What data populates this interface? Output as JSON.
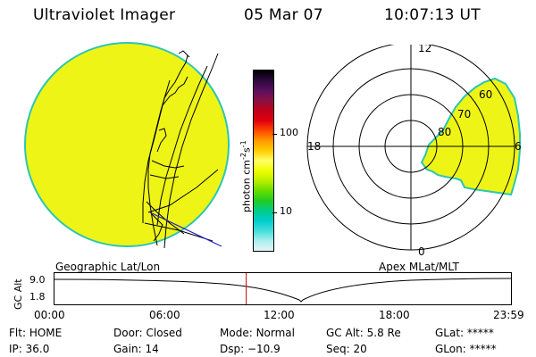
{
  "header": {
    "title": "Ultraviolet Imager",
    "date": "05 Mar 07",
    "time": "10:07:13 UT"
  },
  "colorbar": {
    "label": "photon cm",
    "sup1": "-2",
    "mid": "s",
    "sup2": "-1",
    "tick_high": "100",
    "tick_low": "10",
    "colors": [
      "#000000",
      "#2b0a3d",
      "#5a0f5f",
      "#8a1040",
      "#c00018",
      "#e00010",
      "#ff4800",
      "#ff9900",
      "#ffcc00",
      "#ffff66",
      "#eeff00",
      "#bbee00",
      "#66dd00",
      "#22cc22",
      "#00cc88",
      "#00cccc",
      "#44dddd",
      "#aaeeee",
      "#e8f4f4"
    ]
  },
  "left_panel": {
    "label": "Geographic Lat/Lon",
    "fill_color": "#eef516",
    "edge_color": "#2bc6b4"
  },
  "right_panel": {
    "label": "Apex MLat/MLT",
    "labels": {
      "top": "12",
      "bottom": "0",
      "left": "18",
      "right": "6"
    },
    "lat_labels": [
      "60",
      "70",
      "80"
    ]
  },
  "altitude_plot": {
    "ylabel": "GC Alt",
    "yticks": [
      "9.0",
      "1.8"
    ],
    "xticks": [
      "00:00",
      "06:00",
      "12:00",
      "18:00",
      "23:59"
    ],
    "current_time_fraction": 0.42,
    "marker_color": "#cc0000"
  },
  "status": {
    "row1": [
      {
        "key": "Flt:",
        "value": "HOME"
      },
      {
        "key": "Door:",
        "value": "Closed"
      },
      {
        "key": "Mode:",
        "value": "Normal"
      },
      {
        "key": "GC Alt:",
        "value": "5.8 Re"
      },
      {
        "key": "GLat:",
        "value": "*****"
      }
    ],
    "row2": [
      {
        "key": "IP:",
        "value": "36.0"
      },
      {
        "key": "Gain:",
        "value": "14"
      },
      {
        "key": "Dsp:",
        "value": "−10.9"
      },
      {
        "key": "Seq:",
        "value": "20"
      },
      {
        "key": "GLon:",
        "value": "*****"
      }
    ]
  }
}
